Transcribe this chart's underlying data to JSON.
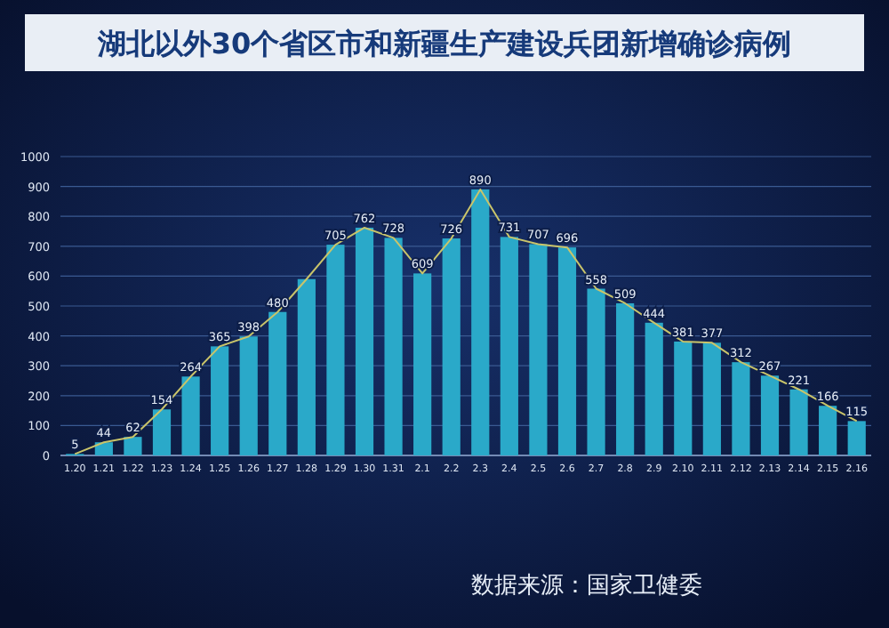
{
  "chart_data": {
    "type": "bar",
    "title": "湖北以外30个省区市和新疆生产建设兵团新增确诊病例",
    "categories": [
      "1.20",
      "1.21",
      "1.22",
      "1.23",
      "1.24",
      "1.25",
      "1.26",
      "1.27",
      "1.28",
      "1.29",
      "1.30",
      "1.31",
      "2.1",
      "2.2",
      "2.3",
      "2.4",
      "2.5",
      "2.6",
      "2.7",
      "2.8",
      "2.9",
      "2.10",
      "2.11",
      "2.12",
      "2.13",
      "2.14",
      "2.15",
      "2.16"
    ],
    "series": [
      {
        "color": "#2aa9c9",
        "values": [
          5,
          44,
          62,
          154,
          264,
          365,
          398,
          480,
          590,
          705,
          762,
          728,
          609,
          726,
          890,
          731,
          707,
          696,
          558,
          509,
          444,
          381,
          377,
          312,
          267,
          221,
          166,
          115
        ],
        "value_labels": [
          "5",
          "44",
          "62",
          "154",
          "264",
          "365",
          "398",
          "480",
          null,
          "705",
          "762",
          "728",
          "609",
          "726",
          "890",
          "731",
          "707",
          "696",
          "558",
          "509",
          "444",
          "381",
          "377",
          "312",
          "267",
          "221",
          "166",
          "115"
        ]
      },
      {
        "type": "line",
        "color": "#c9c46a",
        "values": [
          5,
          44,
          62,
          154,
          264,
          365,
          398,
          480,
          590,
          705,
          762,
          728,
          609,
          726,
          890,
          731,
          707,
          696,
          558,
          509,
          444,
          381,
          377,
          312,
          267,
          221,
          166,
          115
        ]
      }
    ],
    "ylim": [
      0,
      1000
    ],
    "yticks": [
      0,
      100,
      200,
      300,
      400,
      500,
      600,
      700,
      800,
      900,
      1000
    ],
    "grid": "y",
    "annotations": [
      "数据来源：国家卫健委"
    ]
  }
}
